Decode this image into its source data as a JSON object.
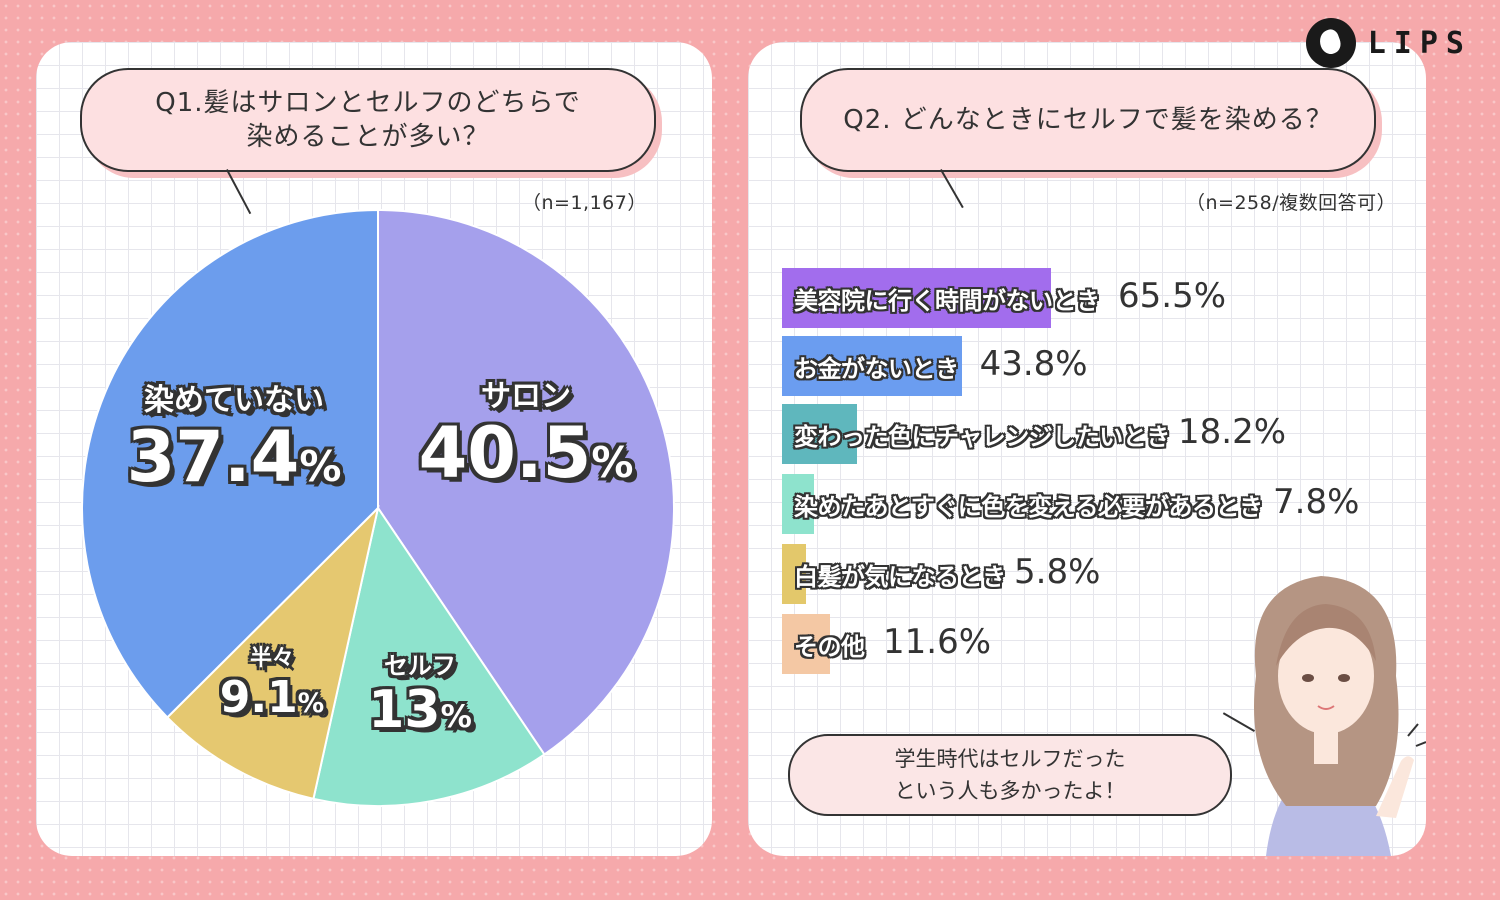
{
  "brand": {
    "logo_text": "LIPS"
  },
  "q1": {
    "question": "Q1.髪はサロンとセルフのどちらで\n染めることが多い？",
    "note": "（n=1,167）"
  },
  "q2": {
    "question": "Q2. どんなときにセルフで髪を染める？",
    "note": "（n=258/複数回答可）",
    "comment": "学生時代はセルフだった\nという人も多かったよ！"
  },
  "colors": {
    "background": "#f6a9ab",
    "salon": "#a5a0ec",
    "self": "#8ee3cd",
    "half": "#e5c870",
    "none": "#6c9ded"
  },
  "chart_data": [
    {
      "type": "pie",
      "slices": [
        {
          "label": "サロン",
          "value": 40.5,
          "display": "40.5",
          "unit": "%",
          "color": "#a5a0ec"
        },
        {
          "label": "セルフ",
          "value": 13.0,
          "display": "13",
          "unit": "%",
          "color": "#8ee3cd"
        },
        {
          "label": "半々",
          "value": 9.1,
          "display": "9.1",
          "unit": "%",
          "color": "#e5c870"
        },
        {
          "label": "染めていない",
          "value": 37.4,
          "display": "37.4",
          "unit": "%",
          "color": "#6c9ded"
        }
      ]
    },
    {
      "type": "bar",
      "orientation": "horizontal",
      "xlim": [
        0,
        100
      ],
      "categories": [
        "美容院に行く時間がないとき",
        "お金がないとき",
        "変わった色にチャレンジしたいとき",
        "染めたあとすぐに色を変える必要があるとき",
        "白髪が気になるとき",
        "その他"
      ],
      "values": [
        65.5,
        43.8,
        18.2,
        7.8,
        5.8,
        11.6
      ],
      "value_labels": [
        "65.5%",
        "43.8%",
        "18.2%",
        "7.8%",
        "5.8%",
        "11.6%"
      ],
      "colors": [
        "#a26ded",
        "#6b9df0",
        "#5fb7bd",
        "#8ee3cd",
        "#e3c86b",
        "#f4c8a4"
      ]
    }
  ]
}
